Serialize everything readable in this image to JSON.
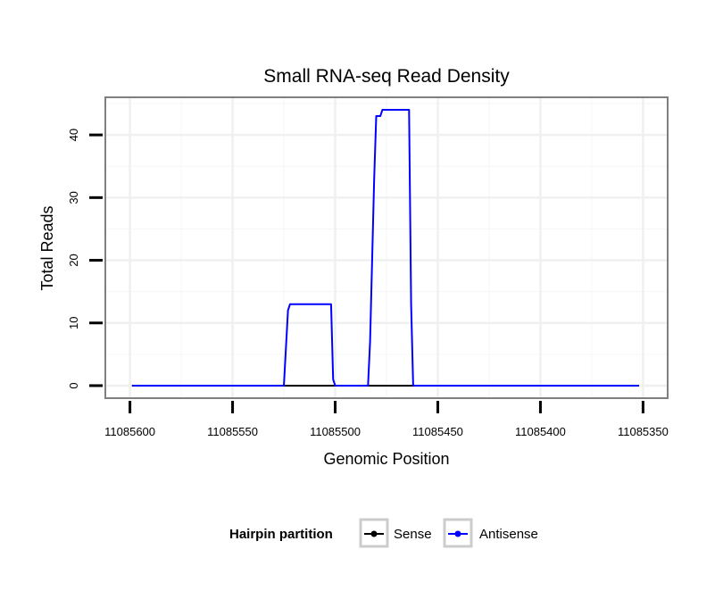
{
  "chart_data": {
    "type": "line",
    "title": "Small RNA-seq Read Density",
    "xlabel": "Genomic Position",
    "ylabel": "Total Reads",
    "x_reversed": true,
    "xlim": [
      11085612,
      11085338
    ],
    "ylim": [
      -2,
      46
    ],
    "x_ticks": [
      11085600,
      11085550,
      11085500,
      11085450,
      11085400,
      11085350
    ],
    "x_tick_labels": [
      "11085600",
      "11085550",
      "11085500",
      "11085450",
      "11085400",
      "11085350"
    ],
    "y_ticks": [
      0,
      10,
      20,
      30,
      40
    ],
    "y_tick_labels": [
      "0",
      "10",
      "20",
      "30",
      "40"
    ],
    "grid": true,
    "legend": {
      "title": "Hairpin partition",
      "position": "bottom",
      "entries": [
        "Sense",
        "Antisense"
      ]
    },
    "series": [
      {
        "name": "Sense",
        "color": "#000000",
        "x": [
          11085599,
          11085352
        ],
        "y": [
          0,
          0
        ]
      },
      {
        "name": "Antisense",
        "color": "#0000ff",
        "x": [
          11085599,
          11085525,
          11085524,
          11085523,
          11085522,
          11085521,
          11085519,
          11085502,
          11085501,
          11085500,
          11085484,
          11085483,
          11085482,
          11085481,
          11085480,
          11085478,
          11085477,
          11085476,
          11085464,
          11085463,
          11085462,
          11085460,
          11085352
        ],
        "y": [
          0,
          0,
          6,
          12,
          13,
          13,
          13,
          13,
          1,
          0,
          0,
          7,
          20,
          33,
          43,
          43,
          44,
          44,
          44,
          13,
          0,
          0,
          0
        ]
      }
    ]
  }
}
